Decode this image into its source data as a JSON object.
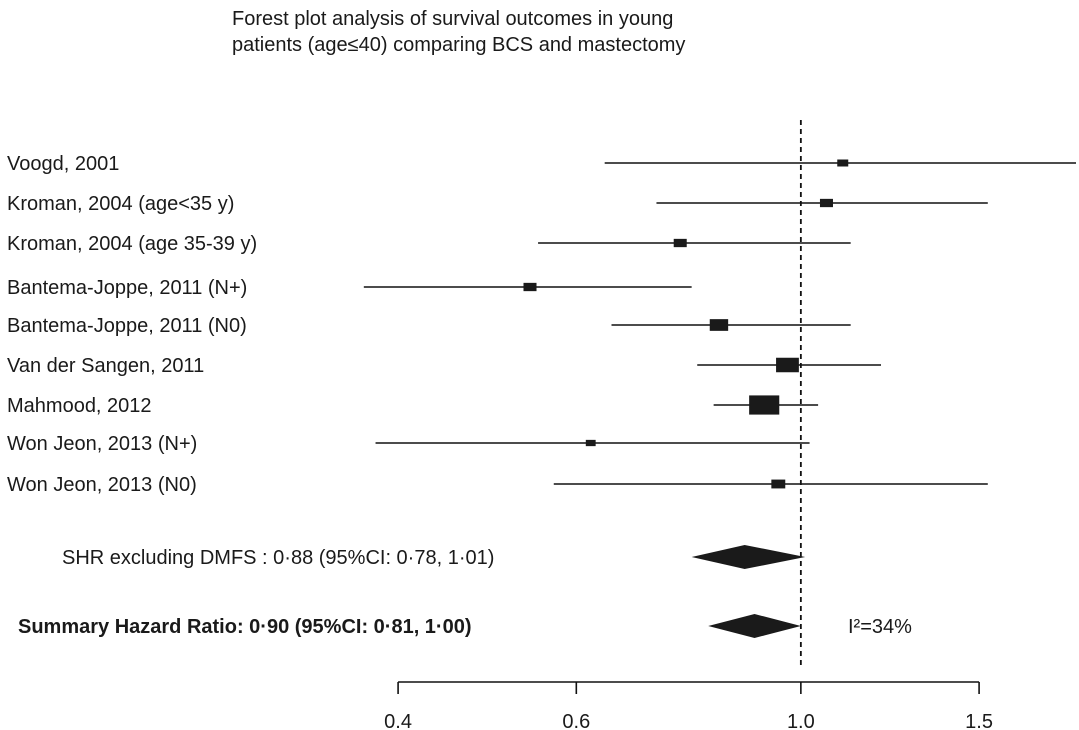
{
  "title_lines": [
    "Forest plot analysis of survival outcomes in young",
    "patients (age≤40) comparing BCS and mastectomy"
  ],
  "chart_data": {
    "type": "forest",
    "x_scale": "log",
    "xlim": [
      0.32,
      1.87
    ],
    "reference_line": 1.0,
    "ticks": [
      {
        "value": 0.4,
        "label": "0.4"
      },
      {
        "value": 0.6,
        "label": "0.6"
      },
      {
        "value": 1.0,
        "label": "1.0"
      },
      {
        "value": 1.5,
        "label": "1.5"
      }
    ],
    "studies": [
      {
        "label": "Voogd, 2001",
        "hr": 1.1,
        "lower": 0.64,
        "upper": 1.87,
        "weight": 1.0
      },
      {
        "label": "Kroman, 2004 (age<35 y)",
        "hr": 1.06,
        "lower": 0.72,
        "upper": 1.53,
        "weight": 1.4
      },
      {
        "label": "Kroman, 2004 (age 35-39 y)",
        "hr": 0.76,
        "lower": 0.55,
        "upper": 1.12,
        "weight": 1.4
      },
      {
        "label": "Bantema-Joppe, 2011 (N+)",
        "hr": 0.54,
        "lower": 0.37,
        "upper": 0.78,
        "weight": 1.4
      },
      {
        "label": "Bantema-Joppe, 2011 (N0)",
        "hr": 0.83,
        "lower": 0.65,
        "upper": 1.12,
        "weight": 2.8
      },
      {
        "label": "Van der Sangen, 2011",
        "hr": 0.97,
        "lower": 0.79,
        "upper": 1.2,
        "weight": 4.3
      },
      {
        "label": "Mahmood, 2012",
        "hr": 0.92,
        "lower": 0.82,
        "upper": 1.04,
        "weight": 7.5
      },
      {
        "label": "Won Jeon, 2013 (N+)",
        "hr": 0.62,
        "lower": 0.38,
        "upper": 1.02,
        "weight": 0.8
      },
      {
        "label": "Won Jeon, 2013 (N0)",
        "hr": 0.95,
        "lower": 0.57,
        "upper": 1.53,
        "weight": 1.6
      }
    ],
    "summaries": [
      {
        "label": "SHR excluding DMFS : 0·88 (95%CI: 0·78, 1·01)",
        "hr": 0.88,
        "lower": 0.78,
        "upper": 1.01,
        "bold": false
      },
      {
        "label": "Summary Hazard Ratio: 0·90 (95%CI: 0·81, 1·00)",
        "hr": 0.9,
        "lower": 0.81,
        "upper": 1.0,
        "bold": true
      }
    ],
    "heterogeneity": "I²=34%"
  }
}
